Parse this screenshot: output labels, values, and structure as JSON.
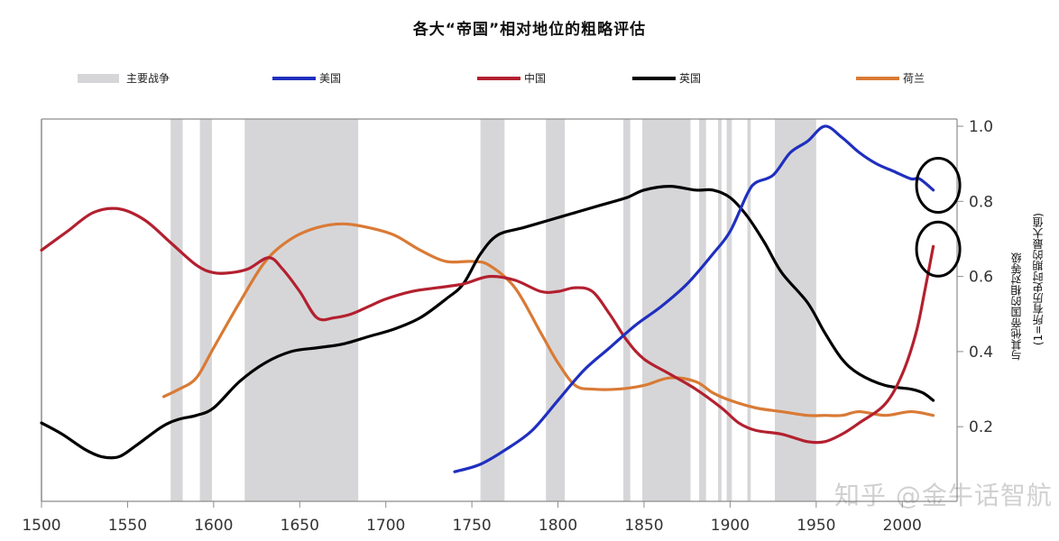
{
  "title": "各大“帝国”相对地位的粗略评估",
  "legend": {
    "wars": "主要战争",
    "usa": "美国",
    "china": "中国",
    "uk": "英国",
    "netherlands": "荷兰"
  },
  "colors": {
    "wars": "#d6d6d8",
    "usa": "#1f2fbf",
    "china": "#b3202f",
    "uk": "#000000",
    "netherlands": "#d97a35",
    "axis": "#8c8c8c",
    "annotation": "#000000"
  },
  "y_axis_label_line1": "与其他帝国的相对等级",
  "y_axis_label_line2": "(1=所有历史时期的最大值)",
  "watermark": "知乎 @金牛话智航",
  "chart_data": {
    "type": "line",
    "title": "各大“帝国”相对地位的粗略评估",
    "xlabel": "",
    "ylabel": "与其他帝国的相对等级 (1=所有历史时期的最大值)",
    "xlim": [
      1500,
      2020
    ],
    "ylim": [
      0.0,
      1.0
    ],
    "x_ticks": [
      1500,
      1550,
      1600,
      1650,
      1700,
      1750,
      1800,
      1850,
      1900,
      1950,
      2000
    ],
    "y_ticks": [
      0.2,
      0.4,
      0.6,
      0.8,
      1.0
    ],
    "y_tick_labels": [
      "0.2",
      "0.4",
      "0.6",
      "0.8",
      "1.0"
    ],
    "y_axis_position": "right",
    "grid": false,
    "legend_position": "top",
    "wars": [
      [
        1575,
        1582
      ],
      [
        1592,
        1599
      ],
      [
        1618,
        1684
      ],
      [
        1755,
        1769
      ],
      [
        1793,
        1804
      ],
      [
        1838,
        1842
      ],
      [
        1849,
        1877
      ],
      [
        1882,
        1886
      ],
      [
        1893,
        1895
      ],
      [
        1898,
        1901
      ],
      [
        1910,
        1912
      ],
      [
        1926,
        1950
      ]
    ],
    "series": [
      {
        "name": "美国",
        "key": "usa",
        "points": [
          [
            1740,
            0.08
          ],
          [
            1755,
            0.1
          ],
          [
            1770,
            0.14
          ],
          [
            1785,
            0.19
          ],
          [
            1800,
            0.27
          ],
          [
            1815,
            0.35
          ],
          [
            1830,
            0.41
          ],
          [
            1845,
            0.47
          ],
          [
            1860,
            0.52
          ],
          [
            1875,
            0.58
          ],
          [
            1890,
            0.66
          ],
          [
            1900,
            0.72
          ],
          [
            1910,
            0.82
          ],
          [
            1915,
            0.85
          ],
          [
            1925,
            0.87
          ],
          [
            1935,
            0.93
          ],
          [
            1945,
            0.96
          ],
          [
            1955,
            1.0
          ],
          [
            1965,
            0.97
          ],
          [
            1975,
            0.93
          ],
          [
            1985,
            0.9
          ],
          [
            1995,
            0.88
          ],
          [
            2005,
            0.86
          ],
          [
            2010,
            0.86
          ],
          [
            2018,
            0.83
          ]
        ]
      },
      {
        "name": "中国",
        "key": "china",
        "points": [
          [
            1500,
            0.67
          ],
          [
            1515,
            0.72
          ],
          [
            1530,
            0.77
          ],
          [
            1545,
            0.78
          ],
          [
            1560,
            0.75
          ],
          [
            1575,
            0.69
          ],
          [
            1590,
            0.63
          ],
          [
            1600,
            0.61
          ],
          [
            1610,
            0.61
          ],
          [
            1620,
            0.62
          ],
          [
            1632,
            0.65
          ],
          [
            1640,
            0.62
          ],
          [
            1650,
            0.56
          ],
          [
            1660,
            0.49
          ],
          [
            1670,
            0.49
          ],
          [
            1680,
            0.5
          ],
          [
            1690,
            0.52
          ],
          [
            1700,
            0.54
          ],
          [
            1715,
            0.56
          ],
          [
            1730,
            0.57
          ],
          [
            1745,
            0.58
          ],
          [
            1760,
            0.6
          ],
          [
            1775,
            0.59
          ],
          [
            1790,
            0.56
          ],
          [
            1800,
            0.56
          ],
          [
            1810,
            0.57
          ],
          [
            1820,
            0.56
          ],
          [
            1830,
            0.5
          ],
          [
            1840,
            0.43
          ],
          [
            1850,
            0.38
          ],
          [
            1865,
            0.34
          ],
          [
            1880,
            0.3
          ],
          [
            1895,
            0.25
          ],
          [
            1905,
            0.21
          ],
          [
            1915,
            0.19
          ],
          [
            1930,
            0.18
          ],
          [
            1945,
            0.16
          ],
          [
            1955,
            0.16
          ],
          [
            1965,
            0.18
          ],
          [
            1975,
            0.21
          ],
          [
            1990,
            0.26
          ],
          [
            2000,
            0.34
          ],
          [
            2008,
            0.45
          ],
          [
            2013,
            0.56
          ],
          [
            2018,
            0.68
          ]
        ]
      },
      {
        "name": "英国",
        "key": "uk",
        "points": [
          [
            1500,
            0.21
          ],
          [
            1512,
            0.18
          ],
          [
            1525,
            0.14
          ],
          [
            1535,
            0.12
          ],
          [
            1545,
            0.12
          ],
          [
            1555,
            0.15
          ],
          [
            1570,
            0.2
          ],
          [
            1580,
            0.22
          ],
          [
            1590,
            0.23
          ],
          [
            1600,
            0.25
          ],
          [
            1615,
            0.32
          ],
          [
            1630,
            0.37
          ],
          [
            1645,
            0.4
          ],
          [
            1660,
            0.41
          ],
          [
            1675,
            0.42
          ],
          [
            1690,
            0.44
          ],
          [
            1705,
            0.46
          ],
          [
            1720,
            0.49
          ],
          [
            1735,
            0.54
          ],
          [
            1745,
            0.58
          ],
          [
            1755,
            0.66
          ],
          [
            1765,
            0.71
          ],
          [
            1780,
            0.73
          ],
          [
            1795,
            0.75
          ],
          [
            1810,
            0.77
          ],
          [
            1825,
            0.79
          ],
          [
            1840,
            0.81
          ],
          [
            1850,
            0.83
          ],
          [
            1865,
            0.84
          ],
          [
            1880,
            0.83
          ],
          [
            1890,
            0.83
          ],
          [
            1900,
            0.81
          ],
          [
            1910,
            0.76
          ],
          [
            1920,
            0.69
          ],
          [
            1930,
            0.61
          ],
          [
            1945,
            0.53
          ],
          [
            1955,
            0.45
          ],
          [
            1965,
            0.38
          ],
          [
            1975,
            0.34
          ],
          [
            1990,
            0.31
          ],
          [
            2005,
            0.3
          ],
          [
            2012,
            0.29
          ],
          [
            2018,
            0.27
          ]
        ]
      },
      {
        "name": "荷兰",
        "key": "netherlands",
        "points": [
          [
            1571,
            0.28
          ],
          [
            1580,
            0.3
          ],
          [
            1590,
            0.33
          ],
          [
            1600,
            0.41
          ],
          [
            1615,
            0.53
          ],
          [
            1630,
            0.64
          ],
          [
            1645,
            0.7
          ],
          [
            1660,
            0.73
          ],
          [
            1675,
            0.74
          ],
          [
            1690,
            0.73
          ],
          [
            1705,
            0.71
          ],
          [
            1720,
            0.67
          ],
          [
            1735,
            0.64
          ],
          [
            1750,
            0.64
          ],
          [
            1760,
            0.63
          ],
          [
            1775,
            0.57
          ],
          [
            1790,
            0.45
          ],
          [
            1800,
            0.37
          ],
          [
            1810,
            0.31
          ],
          [
            1820,
            0.3
          ],
          [
            1835,
            0.3
          ],
          [
            1850,
            0.31
          ],
          [
            1865,
            0.33
          ],
          [
            1880,
            0.32
          ],
          [
            1890,
            0.29
          ],
          [
            1900,
            0.27
          ],
          [
            1915,
            0.25
          ],
          [
            1930,
            0.24
          ],
          [
            1945,
            0.23
          ],
          [
            1955,
            0.23
          ],
          [
            1965,
            0.23
          ],
          [
            1975,
            0.24
          ],
          [
            1990,
            0.23
          ],
          [
            2005,
            0.24
          ],
          [
            2018,
            0.23
          ]
        ]
      }
    ],
    "annotations": [
      {
        "type": "ellipse",
        "around": "美国 2018",
        "center_year": 2013,
        "center_value": 0.85
      },
      {
        "type": "ellipse",
        "around": "中国 2018",
        "center_year": 2013,
        "center_value": 0.68
      }
    ]
  }
}
